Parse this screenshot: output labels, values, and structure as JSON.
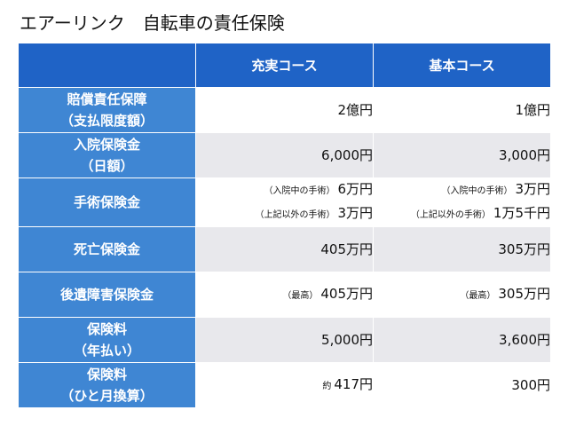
{
  "title": "エアーリンク　自転車の責任保険",
  "table": {
    "headers": [
      "",
      "充実コース",
      "基本コース"
    ],
    "rows": [
      {
        "label": [
          "賠償責任保障",
          "（支払限度額）"
        ],
        "c1": [
          {
            "note": "",
            "value": "2億円"
          }
        ],
        "c2": [
          {
            "note": "",
            "value": "1億円"
          }
        ]
      },
      {
        "label": [
          "入院保険金",
          "（日額）"
        ],
        "c1": [
          {
            "note": "",
            "value": "6,000円"
          }
        ],
        "c2": [
          {
            "note": "",
            "value": "3,000円"
          }
        ]
      },
      {
        "label": [
          "手術保険金"
        ],
        "c1": [
          {
            "note": "（入院中の手術）",
            "value": "6万円"
          },
          {
            "note": "（上記以外の手術）",
            "value": "3万円"
          }
        ],
        "c2": [
          {
            "note": "（入院中の手術）",
            "value": "3万円"
          },
          {
            "note": "（上記以外の手術）",
            "value": "1万5千円"
          }
        ]
      },
      {
        "label": [
          "死亡保険金"
        ],
        "c1": [
          {
            "note": "",
            "value": "405万円"
          }
        ],
        "c2": [
          {
            "note": "",
            "value": "305万円"
          }
        ]
      },
      {
        "label": [
          "後遺障害保険金"
        ],
        "c1": [
          {
            "note": "（最高）",
            "value": "405万円"
          }
        ],
        "c2": [
          {
            "note": "（最高）",
            "value": "305万円"
          }
        ]
      },
      {
        "label": [
          "保険料",
          "（年払い）"
        ],
        "c1": [
          {
            "note": "",
            "value": "5,000円"
          }
        ],
        "c2": [
          {
            "note": "",
            "value": "3,600円"
          }
        ]
      },
      {
        "label": [
          "保険料",
          "（ひと月換算）"
        ],
        "c1": [
          {
            "note": "約",
            "value": "417円"
          }
        ],
        "c2": [
          {
            "note": "",
            "value": "300円"
          }
        ]
      }
    ]
  }
}
